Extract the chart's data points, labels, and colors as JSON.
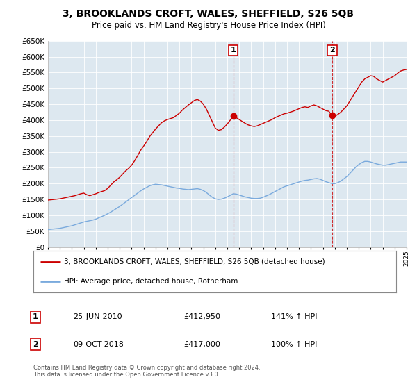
{
  "title": "3, BROOKLANDS CROFT, WALES, SHEFFIELD, S26 5QB",
  "subtitle": "Price paid vs. HM Land Registry's House Price Index (HPI)",
  "legend_line1": "3, BROOKLANDS CROFT, WALES, SHEFFIELD, S26 5QB (detached house)",
  "legend_line2": "HPI: Average price, detached house, Rotherham",
  "transaction1_label": "1",
  "transaction1_date": "25-JUN-2010",
  "transaction1_price": "£412,950",
  "transaction1_hpi": "141% ↑ HPI",
  "transaction1_year": 2010.5,
  "transaction2_label": "2",
  "transaction2_date": "09-OCT-2018",
  "transaction2_price": "£417,000",
  "transaction2_hpi": "100% ↑ HPI",
  "transaction2_year": 2018.78,
  "red_color": "#cc0000",
  "blue_color": "#7aaadd",
  "background_color": "#dde8f0",
  "grid_color": "#ffffff",
  "ylim": [
    0,
    650000
  ],
  "yticks": [
    0,
    50000,
    100000,
    150000,
    200000,
    250000,
    300000,
    350000,
    400000,
    450000,
    500000,
    550000,
    600000,
    650000
  ],
  "footer": "Contains HM Land Registry data © Crown copyright and database right 2024.\nThis data is licensed under the Open Government Licence v3.0.",
  "red_line": {
    "years": [
      1995.0,
      1995.25,
      1995.5,
      1995.75,
      1996.0,
      1996.25,
      1996.5,
      1996.75,
      1997.0,
      1997.25,
      1997.5,
      1997.75,
      1998.0,
      1998.25,
      1998.5,
      1998.75,
      1999.0,
      1999.25,
      1999.5,
      1999.75,
      2000.0,
      2000.25,
      2000.5,
      2000.75,
      2001.0,
      2001.25,
      2001.5,
      2001.75,
      2002.0,
      2002.25,
      2002.5,
      2002.75,
      2003.0,
      2003.25,
      2003.5,
      2003.75,
      2004.0,
      2004.25,
      2004.5,
      2004.75,
      2005.0,
      2005.25,
      2005.5,
      2005.75,
      2006.0,
      2006.25,
      2006.5,
      2006.75,
      2007.0,
      2007.25,
      2007.5,
      2007.75,
      2008.0,
      2008.25,
      2008.5,
      2008.75,
      2009.0,
      2009.25,
      2009.5,
      2009.75,
      2010.0,
      2010.25,
      2010.5,
      2010.75,
      2011.0,
      2011.25,
      2011.5,
      2011.75,
      2012.0,
      2012.25,
      2012.5,
      2012.75,
      2013.0,
      2013.25,
      2013.5,
      2013.75,
      2014.0,
      2014.25,
      2014.5,
      2014.75,
      2015.0,
      2015.25,
      2015.5,
      2015.75,
      2016.0,
      2016.25,
      2016.5,
      2016.75,
      2017.0,
      2017.25,
      2017.5,
      2017.75,
      2018.0,
      2018.25,
      2018.5,
      2018.75,
      2019.0,
      2019.25,
      2019.5,
      2019.75,
      2020.0,
      2020.25,
      2020.5,
      2020.75,
      2021.0,
      2021.25,
      2021.5,
      2021.75,
      2022.0,
      2022.25,
      2022.5,
      2022.75,
      2023.0,
      2023.25,
      2023.5,
      2023.75,
      2024.0,
      2024.25,
      2024.5,
      2024.75,
      2025.0
    ],
    "values": [
      148000,
      149000,
      150000,
      151000,
      152000,
      154000,
      156000,
      158000,
      160000,
      162000,
      165000,
      168000,
      170000,
      165000,
      162000,
      165000,
      168000,
      172000,
      175000,
      178000,
      185000,
      195000,
      205000,
      212000,
      220000,
      230000,
      240000,
      248000,
      258000,
      272000,
      288000,
      305000,
      318000,
      332000,
      348000,
      360000,
      372000,
      382000,
      392000,
      398000,
      402000,
      405000,
      408000,
      415000,
      422000,
      432000,
      440000,
      448000,
      455000,
      462000,
      465000,
      460000,
      450000,
      435000,
      415000,
      395000,
      375000,
      368000,
      370000,
      378000,
      388000,
      400000,
      412000,
      408000,
      402000,
      396000,
      390000,
      385000,
      382000,
      380000,
      382000,
      386000,
      390000,
      394000,
      398000,
      402000,
      408000,
      412000,
      416000,
      420000,
      422000,
      425000,
      428000,
      432000,
      436000,
      440000,
      442000,
      440000,
      445000,
      448000,
      445000,
      440000,
      435000,
      430000,
      428000,
      415000,
      412000,
      418000,
      425000,
      435000,
      445000,
      460000,
      475000,
      490000,
      505000,
      520000,
      530000,
      535000,
      540000,
      538000,
      530000,
      525000,
      520000,
      525000,
      530000,
      535000,
      540000,
      548000,
      555000,
      558000,
      560000
    ]
  },
  "blue_line": {
    "years": [
      1995.0,
      1995.25,
      1995.5,
      1995.75,
      1996.0,
      1996.25,
      1996.5,
      1996.75,
      1997.0,
      1997.25,
      1997.5,
      1997.75,
      1998.0,
      1998.25,
      1998.5,
      1998.75,
      1999.0,
      1999.25,
      1999.5,
      1999.75,
      2000.0,
      2000.25,
      2000.5,
      2000.75,
      2001.0,
      2001.25,
      2001.5,
      2001.75,
      2002.0,
      2002.25,
      2002.5,
      2002.75,
      2003.0,
      2003.25,
      2003.5,
      2003.75,
      2004.0,
      2004.25,
      2004.5,
      2004.75,
      2005.0,
      2005.25,
      2005.5,
      2005.75,
      2006.0,
      2006.25,
      2006.5,
      2006.75,
      2007.0,
      2007.25,
      2007.5,
      2007.75,
      2008.0,
      2008.25,
      2008.5,
      2008.75,
      2009.0,
      2009.25,
      2009.5,
      2009.75,
      2010.0,
      2010.25,
      2010.5,
      2010.75,
      2011.0,
      2011.25,
      2011.5,
      2011.75,
      2012.0,
      2012.25,
      2012.5,
      2012.75,
      2013.0,
      2013.25,
      2013.5,
      2013.75,
      2014.0,
      2014.25,
      2014.5,
      2014.75,
      2015.0,
      2015.25,
      2015.5,
      2015.75,
      2016.0,
      2016.25,
      2016.5,
      2016.75,
      2017.0,
      2017.25,
      2017.5,
      2017.75,
      2018.0,
      2018.25,
      2018.5,
      2018.75,
      2019.0,
      2019.25,
      2019.5,
      2019.75,
      2020.0,
      2020.25,
      2020.5,
      2020.75,
      2021.0,
      2021.25,
      2021.5,
      2021.75,
      2022.0,
      2022.25,
      2022.5,
      2022.75,
      2023.0,
      2023.25,
      2023.5,
      2023.75,
      2024.0,
      2024.25,
      2024.5,
      2024.75,
      2025.0
    ],
    "values": [
      55000,
      56000,
      57000,
      58000,
      59000,
      61000,
      63000,
      65000,
      67000,
      70000,
      73000,
      76000,
      79000,
      81000,
      83000,
      85000,
      88000,
      92000,
      96000,
      100000,
      105000,
      110000,
      116000,
      122000,
      128000,
      135000,
      142000,
      149000,
      156000,
      163000,
      170000,
      177000,
      183000,
      188000,
      193000,
      196000,
      198000,
      197000,
      196000,
      194000,
      192000,
      190000,
      188000,
      186000,
      185000,
      183000,
      182000,
      181000,
      182000,
      183000,
      184000,
      182000,
      178000,
      172000,
      164000,
      157000,
      152000,
      150000,
      151000,
      154000,
      158000,
      163000,
      168000,
      167000,
      164000,
      161000,
      158000,
      156000,
      154000,
      153000,
      153000,
      154000,
      157000,
      161000,
      165000,
      170000,
      175000,
      180000,
      185000,
      190000,
      193000,
      196000,
      199000,
      202000,
      205000,
      208000,
      210000,
      211000,
      213000,
      215000,
      216000,
      214000,
      210000,
      206000,
      203000,
      200000,
      200000,
      203000,
      208000,
      215000,
      222000,
      232000,
      242000,
      252000,
      260000,
      266000,
      270000,
      270000,
      268000,
      265000,
      262000,
      260000,
      258000,
      258000,
      260000,
      262000,
      264000,
      266000,
      268000,
      268000,
      268000
    ]
  }
}
